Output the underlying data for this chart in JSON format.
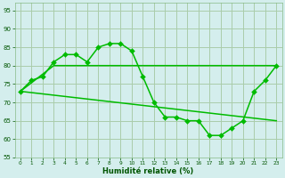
{
  "xlabel": "Humidité relative (%)",
  "background_color": "#d4eeed",
  "grid_color": "#aaccaa",
  "line_color": "#00bb00",
  "xlim": [
    -0.5,
    23.5
  ],
  "ylim": [
    55,
    97
  ],
  "yticks": [
    55,
    60,
    65,
    70,
    75,
    80,
    85,
    90,
    95
  ],
  "xticks": [
    0,
    1,
    2,
    3,
    4,
    5,
    6,
    7,
    8,
    9,
    10,
    11,
    12,
    13,
    14,
    15,
    16,
    17,
    18,
    19,
    20,
    21,
    22,
    23
  ],
  "line1_x": [
    0,
    1,
    2,
    3,
    4,
    5,
    6,
    7,
    8,
    9,
    10,
    11,
    12,
    13,
    14,
    15,
    16,
    17,
    18,
    19,
    20,
    21,
    22,
    23
  ],
  "line1_y": [
    73,
    76,
    77,
    81,
    83,
    83,
    81,
    85,
    86,
    86,
    84,
    77,
    70,
    66,
    66,
    65,
    65,
    61,
    61,
    63,
    65,
    73,
    76,
    80
  ],
  "line2_x": [
    0,
    3,
    10,
    19,
    23
  ],
  "line2_y": [
    73,
    80,
    80,
    80,
    80
  ],
  "line3_x": [
    0,
    23
  ],
  "line3_y": [
    73,
    65
  ],
  "markersize": 3,
  "linewidth": 1.1
}
